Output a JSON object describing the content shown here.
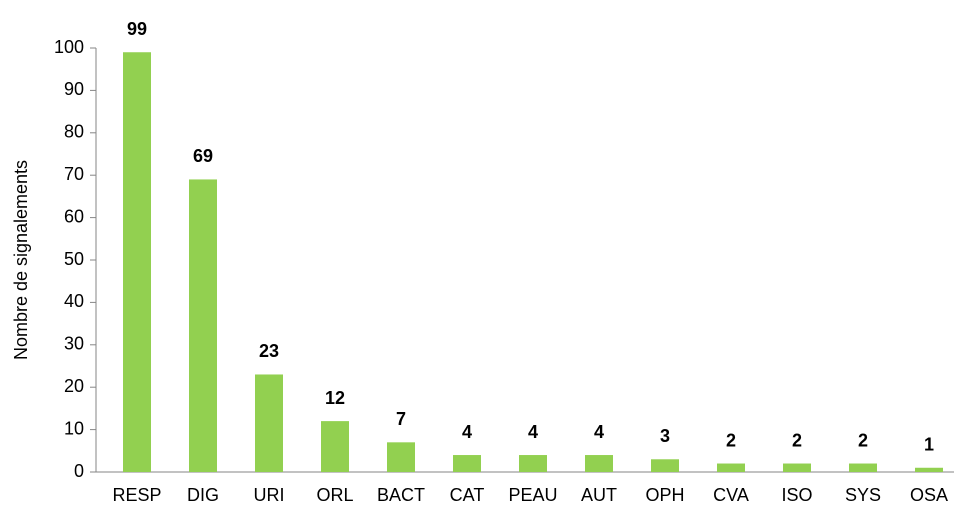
{
  "chart_data": {
    "type": "bar",
    "ylabel": "Nombre de signalements",
    "categories": [
      "RESP",
      "DIG",
      "URI",
      "ORL",
      "BACT",
      "CAT",
      "PEAU",
      "AUT",
      "OPH",
      "CVA",
      "ISO",
      "SYS",
      "OSA"
    ],
    "values": [
      99,
      69,
      23,
      12,
      7,
      4,
      4,
      4,
      3,
      2,
      2,
      2,
      1
    ],
    "color": "#92d050",
    "ylim": [
      0,
      100
    ],
    "yticks": [
      0,
      10,
      20,
      30,
      40,
      50,
      60,
      70,
      80,
      90,
      100
    ],
    "grid": false
  }
}
